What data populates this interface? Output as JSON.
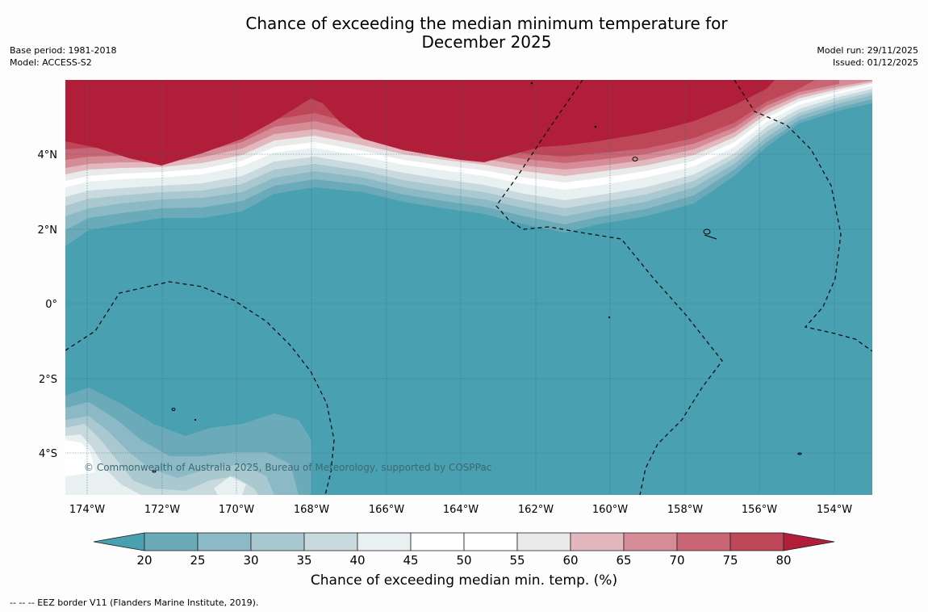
{
  "header": {
    "title_line1": "Chance of exceeding the median minimum temperature for",
    "title_line2": "December 2025",
    "base_period": "Base period: 1981-2018",
    "model": "Model: ACCESS-S2",
    "model_run": "Model run: 29/11/2025",
    "issued": "Issued: 01/12/2025"
  },
  "map": {
    "lat_labels": [
      "4°N",
      "2°N",
      "0°",
      "2°S",
      "4°S"
    ],
    "lon_labels": [
      "174°W",
      "172°W",
      "170°W",
      "168°W",
      "166°W",
      "164°W",
      "162°W",
      "160°W",
      "158°W",
      "156°W",
      "154°W"
    ],
    "copyright": "© Commonwealth of Australia 2025, Bureau of Meteorology, supported by COSPPac"
  },
  "colorbar": {
    "ticks": [
      "20",
      "25",
      "30",
      "35",
      "40",
      "45",
      "50",
      "55",
      "60",
      "65",
      "70",
      "75",
      "80"
    ],
    "colors": [
      "#6aaab9",
      "#8bbac6",
      "#a9c8cf",
      "#c9dade",
      "#e8f0f1",
      "#ffffff",
      "#ffffff",
      "#eaeaeb",
      "#e2b7bd",
      "#d68c97",
      "#c96574",
      "#bd4657"
    ],
    "under_color": "#49a0b1",
    "over_color": "#b01e3a",
    "label": "Chance of exceeding median min. temp. (%)"
  },
  "legend": {
    "eez": "--  --  -- EEZ border V11 (Flanders Marine Institute, 2019)."
  }
}
